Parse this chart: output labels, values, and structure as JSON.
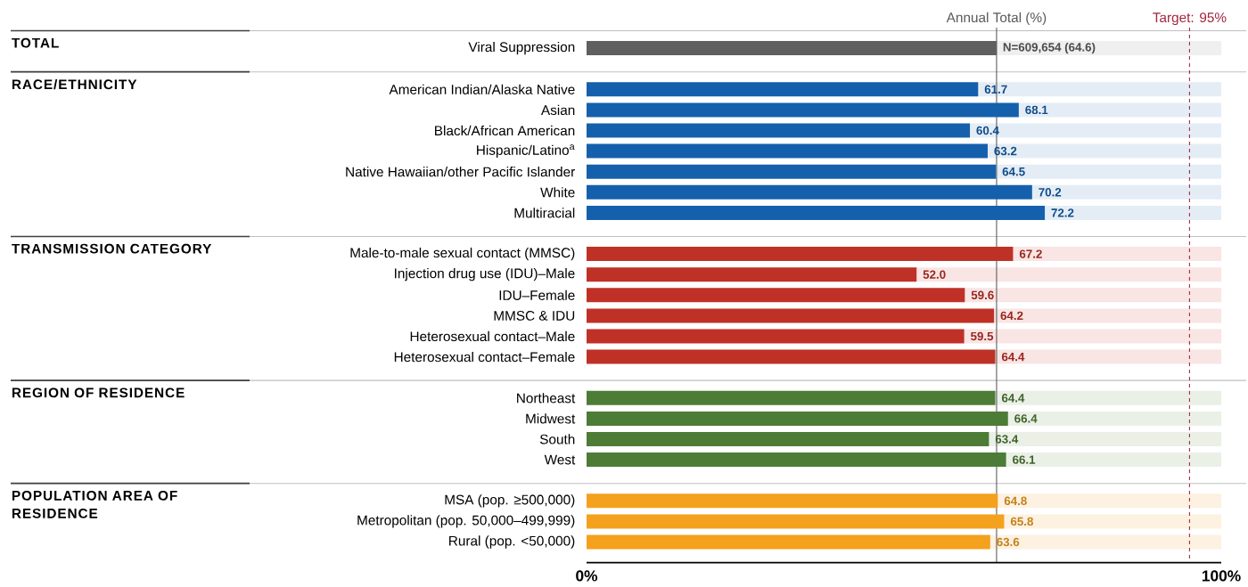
{
  "chart_data": {
    "type": "bar",
    "orientation": "horizontal",
    "stacked": true,
    "categories": [
      "Viral Suppression",
      "American Indian/Alaska Native",
      "Asian",
      "Black/African American",
      "Hispanic/Latino$^{a}$",
      "Native Hawaiian/other Pacific Islander",
      "White",
      "Multiracial",
      "Male-to-male sexual contact (MMSC)",
      "Injection drug use (IDU)–Male",
      "IDU–Female",
      "MMSC & IDU",
      "Heterosexual contact–Male",
      "Heterosexual contact–Female",
      "Northeast",
      "Midwest",
      "South",
      "West",
      "MSA (pop. ≥500,000)",
      "Metropolitan (pop. 50,000–499,999)",
      "Rural (pop. <50,000)"
    ],
    "series": [
      {
        "values": [
          64.6,
          61.7,
          68.1,
          60.4,
          63.2,
          64.5,
          70.2,
          72.2,
          67.2,
          52.0,
          59.6,
          64.2,
          59.5,
          64.4,
          64.4,
          66.4,
          63.4,
          66.1,
          64.8,
          65.8,
          63.6
        ],
        "colors": [
          "#5f5f5f",
          "#1560ad",
          "#1560ad",
          "#1560ad",
          "#1560ad",
          "#1560ad",
          "#1560ad",
          "#1560ad",
          "#bf3127",
          "#bf3127",
          "#bf3127",
          "#bf3127",
          "#bf3127",
          "#bf3127",
          "#4d7c36",
          "#4d7c36",
          "#4d7c36",
          "#4d7c36",
          "#f4a11d",
          "#f4a11d",
          "#f4a11d"
        ],
        "value_labels": [
          "N=609,654 (64.6)",
          "61.7",
          "68.1",
          "60.4",
          "63.2",
          "64.5",
          "70.2",
          "72.2",
          "67.2",
          "52.0",
          "59.6",
          "64.2",
          "59.5",
          "64.4",
          "64.4",
          "66.4",
          "63.4",
          "66.1",
          "64.8",
          "65.8",
          "63.6"
        ]
      },
      {
        "values": [
          35.4,
          38.3,
          31.9,
          39.6,
          36.8,
          35.5,
          29.8,
          27.8,
          32.8,
          48.0,
          40.4,
          35.8,
          40.5,
          35.6,
          35.6,
          33.6,
          36.6,
          33.9,
          35.2,
          34.2,
          36.4
        ],
        "colors": [
          "#efefef",
          "#e4edf6",
          "#e4edf6",
          "#e4edf6",
          "#e4edf6",
          "#e4edf6",
          "#e4edf6",
          "#e4edf6",
          "#f8e5e4",
          "#f8e5e4",
          "#f8e5e4",
          "#f8e5e4",
          "#f8e5e4",
          "#f8e5e4",
          "#eaf0e6",
          "#eaf0e6",
          "#eaf0e6",
          "#eaf0e6",
          "#fdf1e1",
          "#fdf1e1",
          "#fdf1e1"
        ]
      }
    ],
    "xlim": [
      0,
      100
    ],
    "xticks": [
      {
        "value": 0,
        "label": "0%"
      },
      {
        "value": 100,
        "label": "100%"
      }
    ],
    "ref_lines": [
      {
        "axis": "x",
        "value": 64.6,
        "label": "Annual Total (%)",
        "color": "#595959",
        "line_style": "solid"
      },
      {
        "axis": "x",
        "value": 95,
        "label": "Target: 95%",
        "color": "#a3253f",
        "line_style": "dashed"
      }
    ],
    "annotations": [
      "TOTAL",
      "RACE/ETHNICITY",
      "TRANSMISSION CATEGORY",
      "REGION OF RESIDENCE",
      "POPULATION AREA OF RESIDENCE"
    ]
  }
}
